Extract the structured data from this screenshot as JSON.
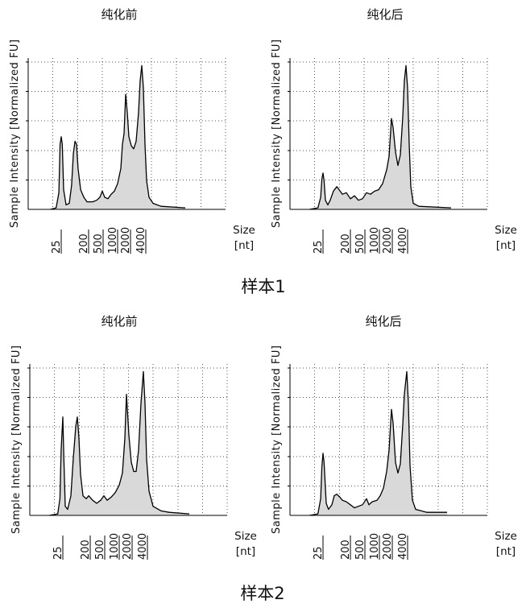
{
  "figure": {
    "captions": [
      "样本1",
      "样本2"
    ]
  },
  "chart_data": [
    {
      "type": "area",
      "title": "纯化前",
      "ylabel": "Sample Intensity [Normalized FU]",
      "xlabel": "Size",
      "xunit": "[nt]",
      "xticks": [
        25,
        200,
        500,
        1000,
        2000,
        4000
      ],
      "ylim": [
        0,
        100
      ],
      "grid": true,
      "fill_color": "#d9d9d9",
      "line_color": "#000000",
      "series": [
        {
          "x": [
            11,
            17,
            21,
            23,
            25,
            27,
            30,
            36,
            46,
            55,
            63,
            71,
            80,
            90,
            109,
            139,
            177,
            258,
            333,
            408,
            475,
            540,
            630,
            735,
            857,
            1000,
            1190,
            1297,
            1414,
            1542,
            1682,
            1834,
            2074,
            2314,
            2582,
            2880,
            3098,
            3333,
            3585,
            3857,
            4149,
            4630,
            5557,
            8010,
            24000
          ],
          "y": [
            0,
            1,
            11,
            43,
            48,
            43,
            13,
            3,
            4,
            16,
            37,
            45,
            43,
            27,
            13,
            8,
            5,
            5,
            6,
            8,
            12,
            8,
            7,
            10,
            12,
            17,
            27,
            43,
            50,
            76,
            64,
            48,
            42,
            40,
            45,
            64,
            85,
            95,
            80,
            43,
            19,
            8,
            4,
            2,
            1
          ]
        }
      ]
    },
    {
      "type": "area",
      "title": "纯化后",
      "ylabel": "Sample Intensity [Normalized FU]",
      "xlabel": "Size",
      "xunit": "[nt]",
      "xticks": [
        25,
        200,
        500,
        1000,
        2000,
        4000
      ],
      "ylim": [
        0,
        100
      ],
      "grid": true,
      "fill_color": "#d9d9d9",
      "line_color": "#000000",
      "series": [
        {
          "x": [
            9,
            17,
            21,
            23,
            25,
            27,
            30,
            36,
            43,
            55,
            71,
            85,
            109,
            147,
            200,
            258,
            333,
            429,
            540,
            655,
            794,
            962,
            1190,
            1477,
            1682,
            1915,
            2074,
            2314,
            2582,
            2880,
            3213,
            3456,
            3718,
            4000,
            4302,
            4630,
            5166,
            6671,
            28800
          ],
          "y": [
            0,
            1,
            8,
            20,
            24,
            19,
            6,
            3,
            6,
            12,
            15,
            13,
            10,
            11,
            7,
            9,
            6,
            7,
            11,
            10,
            12,
            13,
            17,
            26,
            35,
            60,
            54,
            38,
            29,
            36,
            61,
            85,
            95,
            80,
            43,
            15,
            4,
            2,
            1
          ]
        }
      ]
    },
    {
      "type": "area",
      "title": "纯化前",
      "ylabel": "Sample Intensity [Normalized FU]",
      "xlabel": "Size",
      "xunit": "[nt]",
      "xticks": [
        25,
        200,
        500,
        1000,
        2000,
        4000
      ],
      "ylim": [
        0,
        100
      ],
      "grid": true,
      "fill_color": "#d9d9d9",
      "line_color": "#000000",
      "series": [
        {
          "x": [
            9,
            17,
            20,
            22,
            25,
            27,
            30,
            36,
            46,
            55,
            67,
            75,
            85,
            96,
            115,
            147,
            177,
            233,
            301,
            388,
            475,
            561,
            681,
            825,
            1000,
            1190,
            1354,
            1477,
            1682,
            1915,
            2151,
            2400,
            2677,
            2987,
            3333,
            3585,
            3857,
            4302,
            5166,
            7443,
            10730,
            26760
          ],
          "y": [
            0,
            1,
            11,
            43,
            65,
            37,
            6,
            4,
            13,
            37,
            59,
            65,
            51,
            27,
            13,
            11,
            13,
            10,
            8,
            10,
            13,
            10,
            12,
            15,
            20,
            28,
            51,
            80,
            53,
            35,
            29,
            29,
            43,
            74,
            95,
            74,
            37,
            16,
            6,
            3,
            2,
            1
          ]
        }
      ]
    },
    {
      "type": "area",
      "title": "纯化后",
      "ylabel": "Sample Intensity [Normalized FU]",
      "xlabel": "Size",
      "xunit": "[nt]",
      "xticks": [
        25,
        200,
        500,
        1000,
        2000,
        4000
      ],
      "ylim": [
        0,
        100
      ],
      "grid": true,
      "fill_color": "#d9d9d9",
      "line_color": "#000000",
      "series": [
        {
          "x": [
            9,
            17,
            21,
            23,
            25,
            27,
            32,
            38,
            49,
            59,
            71,
            90,
            109,
            147,
            200,
            258,
            333,
            429,
            540,
            606,
            707,
            891,
            1044,
            1242,
            1477,
            1682,
            1915,
            2074,
            2314,
            2582,
            2880,
            3213,
            3456,
            3857,
            4149,
            4463,
            4980,
            5763,
            9616,
            24000
          ],
          "y": [
            0,
            1,
            11,
            32,
            41,
            35,
            8,
            4,
            7,
            13,
            14,
            12,
            10,
            9,
            7,
            5,
            6,
            7,
            11,
            7,
            9,
            10,
            13,
            18,
            29,
            43,
            70,
            61,
            35,
            28,
            34,
            60,
            80,
            95,
            74,
            33,
            10,
            4,
            2,
            2
          ]
        }
      ]
    }
  ]
}
